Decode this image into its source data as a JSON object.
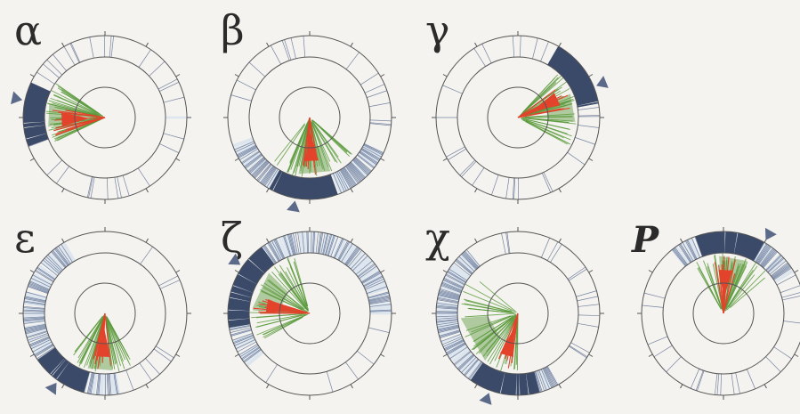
{
  "figure": {
    "colors": {
      "background": "#f4f3ef",
      "ring_fill": "#dde6ee",
      "dark_band": "#3b4a69",
      "line_blue": "#4e5f86",
      "green": "#5a9a3c",
      "red": "#e2432a",
      "outline": "#555555",
      "marker": "#5b6a88"
    },
    "panels": [
      {
        "id": "alpha",
        "label": "α",
        "italic": false,
        "arrow_deg": 192,
        "dark_from": 160,
        "dark_to": 205,
        "light_from": 0,
        "light_to": 360,
        "density": 0.45,
        "green_from": 150,
        "green_to": 215,
        "red_from": 160,
        "red_to": 195
      },
      {
        "id": "beta",
        "label": "β",
        "italic": false,
        "arrow_deg": 100,
        "dark_from": 70,
        "dark_to": 120,
        "light_from": 25,
        "light_to": 160,
        "density": 0.6,
        "green_from": 40,
        "green_to": 130,
        "red_from": 75,
        "red_to": 100
      },
      {
        "id": "gamma",
        "label": "γ",
        "italic": false,
        "arrow_deg": 338,
        "dark_from": 300,
        "dark_to": 350,
        "light_from": 0,
        "light_to": 360,
        "density": 0.4,
        "green_from": 310,
        "green_to": 30,
        "red_from": 320,
        "red_to": 350
      },
      {
        "id": "epsilon",
        "label": "ε",
        "italic": false,
        "arrow_deg": 125,
        "dark_from": 105,
        "dark_to": 145,
        "light_from": 80,
        "light_to": 240,
        "density": 0.55,
        "green_from": 60,
        "green_to": 130,
        "red_from": 80,
        "red_to": 105
      },
      {
        "id": "zeta",
        "label": "ζ",
        "italic": false,
        "arrow_deg": 215,
        "dark_from": 170,
        "dark_to": 235,
        "light_from": 140,
        "light_to": 360,
        "density": 0.5,
        "green_from": 150,
        "green_to": 260,
        "red_from": 180,
        "red_to": 200
      },
      {
        "id": "chi",
        "label": "χ",
        "italic": false,
        "arrow_deg": 110,
        "dark_from": 75,
        "dark_to": 125,
        "light_from": 60,
        "light_to": 230,
        "density": 0.55,
        "green_from": 80,
        "green_to": 220,
        "red_from": 95,
        "red_to": 115
      },
      {
        "id": "p",
        "label": "P",
        "italic": true,
        "arrow_deg": 300,
        "dark_from": 250,
        "dark_to": 300,
        "light_from": 230,
        "light_to": 330,
        "density": 0.55,
        "green_from": 240,
        "green_to": 320,
        "red_from": 255,
        "red_to": 290
      }
    ]
  }
}
